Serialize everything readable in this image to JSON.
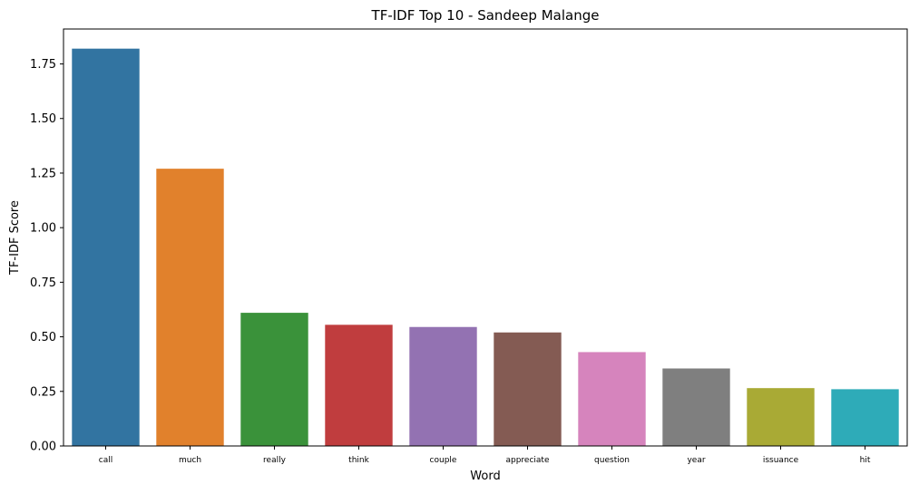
{
  "chart_data": {
    "type": "bar",
    "title": "TF-IDF Top 10 - Sandeep Malange",
    "xlabel": "Word",
    "ylabel": "TF-IDF Score",
    "categories": [
      "call",
      "much",
      "really",
      "think",
      "couple",
      "appreciate",
      "question",
      "year",
      "issuance",
      "hit"
    ],
    "values": [
      1.82,
      1.27,
      0.61,
      0.555,
      0.545,
      0.52,
      0.43,
      0.355,
      0.265,
      0.26
    ],
    "colors": [
      "#3274a1",
      "#e1812c",
      "#3a923a",
      "#c03d3e",
      "#9372b2",
      "#845b53",
      "#d684bd",
      "#7f7f7f",
      "#a9aa35",
      "#2eabb8"
    ],
    "ylim": [
      0,
      1.91
    ],
    "yticks": [
      0.0,
      0.25,
      0.5,
      0.75,
      1.0,
      1.25,
      1.5,
      1.75
    ],
    "ytick_labels": [
      "0.00",
      "0.25",
      "0.50",
      "0.75",
      "1.00",
      "1.25",
      "1.50",
      "1.75"
    ],
    "grid": false,
    "legend": "none"
  }
}
